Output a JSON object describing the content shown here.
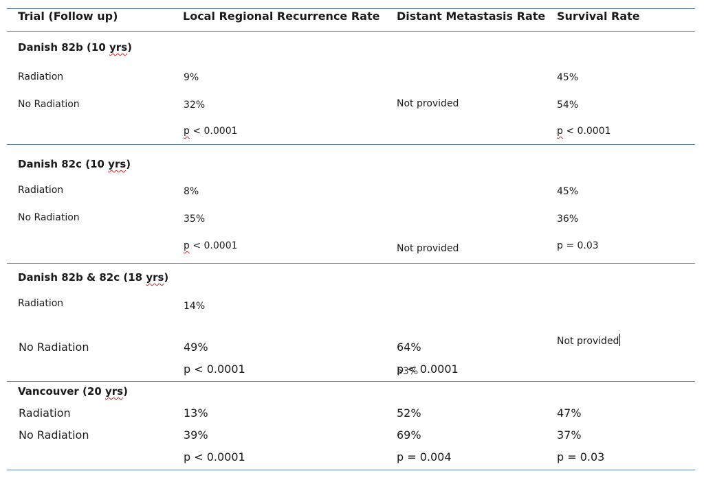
{
  "columns": [
    "Trial (Follow up)",
    "Local Regional Recurrence Rate",
    "Distant Metastasis Rate",
    "Survival Rate"
  ],
  "groups": {
    "g1": {
      "title_main": "Danish 82b (10 ",
      "title_sq": "yrs",
      "title_end": ")",
      "rows": [
        {
          "label": "Radiation",
          "lrr": "9%",
          "surv": "45%"
        },
        {
          "label": "No Radiation",
          "lrr": "32%",
          "surv": "54%"
        }
      ],
      "dm": "Not provided",
      "p_lrr_p": "p",
      "p_lrr_rest": " < 0.0001",
      "p_surv_p": "p",
      "p_surv_rest": " < 0.0001"
    },
    "g2": {
      "title_main": "Danish 82c (10 ",
      "title_sq": "yrs",
      "title_end": ")",
      "rows": [
        {
          "label": "Radiation",
          "lrr": "8%",
          "surv": "45%"
        },
        {
          "label": "No Radiation",
          "lrr": "35%",
          "surv": "36%"
        }
      ],
      "dm": "Not provided",
      "p_lrr_p": "p",
      "p_lrr_rest": " < 0.0001",
      "p_surv": "p = 0.03"
    },
    "g3": {
      "title_main": "Danish 82b & 82c (18 ",
      "title_sq": "yrs",
      "title_end": ")",
      "rows": [
        {
          "label": "Radiation",
          "lrr": "14%"
        },
        {
          "label": "No Radiation",
          "lrr": "49%",
          "dm": "64%"
        }
      ],
      "surv": "Not provided",
      "p_lrr": "p < 0.0001",
      "p_dm": "p < 0.0001",
      "p_dm_overlap": "53%"
    },
    "g4": {
      "title_main": "Vancouver (20 ",
      "title_sq": "yrs",
      "title_end": ")",
      "rows": [
        {
          "label": "Radiation",
          "lrr": "13%",
          "dm": "52%",
          "surv": "47%"
        },
        {
          "label": "No Radiation",
          "lrr": "39%",
          "dm": "69%",
          "surv": "37%"
        }
      ],
      "p_lrr": "p < 0.0001",
      "p_dm": "p = 0.004",
      "p_surv": "p = 0.03"
    }
  }
}
